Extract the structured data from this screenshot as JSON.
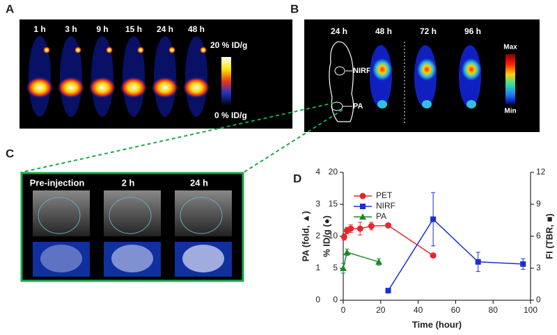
{
  "panels": {
    "a": {
      "letter": "A",
      "times": [
        "1 h",
        "3 h",
        "9 h",
        "15 h",
        "24 h",
        "48 h"
      ],
      "scale_max": "20 % ID/g",
      "scale_min": "0 % ID/g"
    },
    "b": {
      "letter": "B",
      "times": [
        "24 h",
        "48 h",
        "72 h",
        "96 h"
      ],
      "nirf": "NIRF",
      "pa": "PA",
      "scale_max": "Max",
      "scale_min": "Min"
    },
    "c": {
      "letter": "C",
      "times": [
        "Pre-injection",
        "2 h",
        "24 h"
      ]
    },
    "d": {
      "letter": "D"
    }
  },
  "chart_data": {
    "type": "line",
    "xlabel": "Time (hour)",
    "ylabel": "% ID/g (●)",
    "y2label": "FI (TBR, ■)",
    "y3label": "PA (fold, ▲)",
    "xlim": [
      0,
      100
    ],
    "xticks": [
      0,
      20,
      40,
      60,
      80,
      100
    ],
    "ylim": [
      0,
      20
    ],
    "yticks": [
      0,
      5,
      10,
      15,
      20
    ],
    "y2lim": [
      0,
      12
    ],
    "y2ticks": [
      0,
      3,
      6,
      9,
      12
    ],
    "y3lim": [
      0,
      4
    ],
    "y3ticks": [
      0,
      1,
      2,
      3,
      4
    ],
    "legend": "upper left",
    "series": [
      {
        "name": "PET",
        "color": "#e8262a",
        "marker": "circle",
        "axis": "y",
        "x": [
          0.5,
          2,
          4,
          9,
          15,
          24,
          48
        ],
        "values": [
          9.9,
          10.9,
          11.2,
          11.2,
          11.6,
          11.7,
          7.0
        ],
        "errors": [
          0.5,
          0.5,
          0.6,
          1.0,
          0.6,
          0.3,
          0.3
        ]
      },
      {
        "name": "NIRF",
        "color": "#1a2fd6",
        "marker": "square",
        "axis": "y2",
        "x": [
          24,
          48,
          72,
          96
        ],
        "values": [
          0.9,
          7.6,
          3.6,
          3.4
        ],
        "errors": [
          0.2,
          2.5,
          0.9,
          0.5
        ]
      },
      {
        "name": "PA",
        "color": "#1a8a2a",
        "marker": "triangle",
        "axis": "y3",
        "x": [
          0,
          2,
          19
        ],
        "values": [
          1.0,
          1.5,
          1.2
        ],
        "errors": [
          0.15,
          0.1,
          0.1
        ]
      }
    ]
  }
}
